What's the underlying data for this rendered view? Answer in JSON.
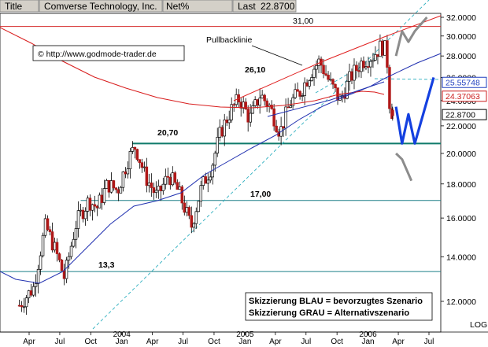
{
  "header": {
    "title_label": "Title",
    "instrument": "Comverse Technology, Inc.",
    "quote_type": "Net%",
    "last_label": "Last",
    "last_value": "22.8700"
  },
  "watermark": "© http://www.godmode-trader.de",
  "legend": {
    "line1": "Skizzierung BLAU = bevorzugtes Szenario",
    "line2": "Skizzierung GRAU = Alternativszenario"
  },
  "annotations": {
    "pullback_label": "Pullbacklinie",
    "level_31": "31,00",
    "level_26": "26,10",
    "level_2070": "20,70",
    "level_17": "17,00",
    "level_133": "13,3"
  },
  "axis": {
    "scale_label": "LOG"
  },
  "price_tags": [
    {
      "text": "25.55748",
      "value": 25.55748,
      "color": "#1f3fbf"
    },
    {
      "text": "24.37063",
      "value": 24.37063,
      "color": "#cc1f1f"
    },
    {
      "text": "22.8700",
      "value": 22.87,
      "color": "#000000"
    }
  ],
  "chart_data": {
    "type": "candlestick",
    "yscale": "log",
    "ylim": [
      11.0,
      33.0
    ],
    "xlim": [
      "2003-02-15",
      "2006-08-01"
    ],
    "ytick_labels": [
      "32.0000",
      "30.0000",
      "28.0000",
      "26.0000",
      "24.0000",
      "22.0000",
      "20.0000",
      "18.0000",
      "16.0000",
      "14.0000",
      "12.0000"
    ],
    "ytick_values": [
      32,
      30,
      28,
      26,
      24,
      22,
      20,
      18,
      16,
      14,
      12
    ],
    "xticks": [
      {
        "label": "Apr",
        "date": "2003-04-01"
      },
      {
        "label": "Jul",
        "date": "2003-07-01"
      },
      {
        "label": "Oct",
        "date": "2003-10-01"
      },
      {
        "label": "Jan",
        "date": "2004-01-01",
        "year": "2004"
      },
      {
        "label": "Apr",
        "date": "2004-04-01"
      },
      {
        "label": "Jul",
        "date": "2004-07-01"
      },
      {
        "label": "Oct",
        "date": "2004-10-01"
      },
      {
        "label": "Jan",
        "date": "2005-01-01",
        "year": "2005"
      },
      {
        "label": "Apr",
        "date": "2005-04-01"
      },
      {
        "label": "Jul",
        "date": "2005-07-01"
      },
      {
        "label": "Oct",
        "date": "2005-10-01"
      },
      {
        "label": "Jan",
        "date": "2006-01-01",
        "year": "2006"
      },
      {
        "label": "Apr",
        "date": "2006-04-01"
      },
      {
        "label": "Jul",
        "date": "2006-07-01"
      }
    ],
    "price_anchors": [
      [
        "2003-03-01",
        11.8
      ],
      [
        "2003-04-15",
        12.6
      ],
      [
        "2003-05-20",
        15.6
      ],
      [
        "2003-06-20",
        14.2
      ],
      [
        "2003-07-15",
        13.0
      ],
      [
        "2003-08-20",
        15.8
      ],
      [
        "2003-09-25",
        17.0
      ],
      [
        "2003-10-20",
        16.6
      ],
      [
        "2003-11-20",
        18.0
      ],
      [
        "2003-12-20",
        17.6
      ],
      [
        "2004-01-20",
        19.6
      ],
      [
        "2004-02-10",
        20.5
      ],
      [
        "2004-03-10",
        18.5
      ],
      [
        "2004-04-15",
        17.2
      ],
      [
        "2004-05-20",
        18.6
      ],
      [
        "2004-06-20",
        17.4
      ],
      [
        "2004-07-25",
        15.5
      ],
      [
        "2004-08-25",
        17.8
      ],
      [
        "2004-09-25",
        19.2
      ],
      [
        "2004-10-20",
        21.5
      ],
      [
        "2004-11-20",
        23.2
      ],
      [
        "2004-12-15",
        24.2
      ],
      [
        "2005-01-15",
        22.5
      ],
      [
        "2005-02-15",
        24.5
      ],
      [
        "2005-03-15",
        23.5
      ],
      [
        "2005-04-15",
        21.5
      ],
      [
        "2005-05-15",
        23.8
      ],
      [
        "2005-06-15",
        24.8
      ],
      [
        "2005-07-15",
        26.5
      ],
      [
        "2005-08-10",
        27.5
      ],
      [
        "2005-09-10",
        25.5
      ],
      [
        "2005-10-10",
        24.0
      ],
      [
        "2005-11-10",
        26.0
      ],
      [
        "2005-12-15",
        27.5
      ],
      [
        "2006-01-15",
        28.0
      ],
      [
        "2006-02-10",
        29.0
      ],
      [
        "2006-02-25",
        28.5
      ],
      [
        "2006-03-05",
        24.0
      ],
      [
        "2006-03-15",
        22.9
      ]
    ],
    "levels": [
      {
        "label": "31,00",
        "value": 31.0
      },
      {
        "label": "20,70",
        "value": 20.7
      },
      {
        "label": "17,00",
        "value": 17.0
      },
      {
        "label": "13,3",
        "value": 13.3
      }
    ],
    "series": [
      {
        "name": "Pullbacklinie",
        "type": "trendline"
      }
    ],
    "scenario_blue": [
      [
        "2006-03-25",
        23.5
      ],
      [
        "2006-04-12",
        20.7
      ],
      [
        "2006-05-01",
        22.9
      ],
      [
        "2006-05-20",
        20.7
      ],
      [
        "2006-07-15",
        26.0
      ]
    ],
    "scenario_gray": [
      [
        "2006-03-25",
        28.0
      ],
      [
        "2006-04-12",
        30.5
      ],
      [
        "2006-05-01",
        29.4
      ],
      [
        "2006-05-20",
        30.5
      ],
      [
        "2006-06-25",
        32.0
      ]
    ],
    "scenario_gray_down": [
      [
        "2006-03-25",
        20.0
      ],
      [
        "2006-04-12",
        19.6
      ],
      [
        "2006-05-10",
        18.2
      ]
    ],
    "colors": {
      "level": "#1b7f86",
      "support": "#0f7a6a",
      "channel": "#e02020",
      "ma_blue": "#2030b0",
      "ma_red": "#d81c1c",
      "dash": "#30b0c0",
      "scen_blue": "#1440e0",
      "scen_gray": "#8c8c8c"
    }
  }
}
